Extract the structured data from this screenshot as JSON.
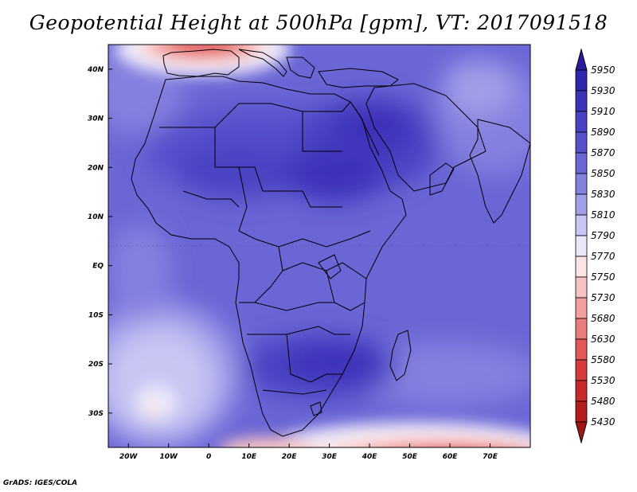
{
  "title": "Geopotential Height at 500hPa [gpm], VT: 2017091518",
  "credit": "GrADS: IGES/COLA",
  "map": {
    "lon_range": [
      -25,
      80
    ],
    "lat_range": [
      -37,
      45
    ],
    "lon_ticks": [
      "20W",
      "10W",
      "0",
      "10E",
      "20E",
      "30E",
      "40E",
      "50E",
      "60E",
      "70E"
    ],
    "lon_tick_values": [
      -20,
      -10,
      0,
      10,
      20,
      30,
      40,
      50,
      60,
      70
    ],
    "lat_ticks": [
      "40N",
      "30N",
      "20N",
      "10N",
      "EQ",
      "10S",
      "20S",
      "30S"
    ],
    "lat_tick_values": [
      40,
      30,
      20,
      10,
      0,
      -10,
      -20,
      -30
    ]
  },
  "colorbar": {
    "labels": [
      "5950",
      "5930",
      "5910",
      "5890",
      "5870",
      "5850",
      "5830",
      "5810",
      "5790",
      "5770",
      "5750",
      "5730",
      "5680",
      "5630",
      "5580",
      "5530",
      "5480",
      "5430"
    ],
    "colors": [
      "#2a1aa0",
      "#3226ae",
      "#3d33b9",
      "#4a42c3",
      "#5650cc",
      "#6a66d6",
      "#8480df",
      "#a19fe9",
      "#c8c6f3",
      "#e9e8fa",
      "#fde4e4",
      "#f8c2c2",
      "#f39f9f",
      "#eb7c7c",
      "#e25858",
      "#d63a3a",
      "#c72828",
      "#b51c1c",
      "#a01414"
    ]
  }
}
